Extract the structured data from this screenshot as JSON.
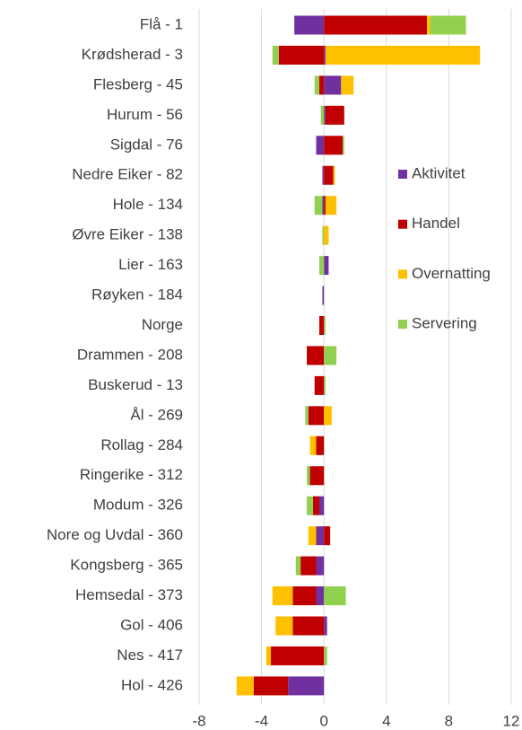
{
  "chart_data": {
    "type": "stacked-hbar",
    "categories": [
      "Flå - 1",
      "Krødsherad - 3",
      "Flesberg - 45",
      "Hurum - 56",
      "Sigdal - 76",
      "Nedre Eiker - 82",
      "Hole - 134",
      "Øvre Eiker - 138",
      "Lier - 163",
      "Røyken - 184",
      "Norge",
      "Drammen - 208",
      "Buskerud - 13",
      "Ål - 269",
      "Rollag - 284",
      "Ringerike - 312",
      "Modum - 326",
      "Nore og Uvdal - 360",
      "Kongsberg - 365",
      "Hemsedal - 373",
      "Gol - 406",
      "Nes - 417",
      "Hol - 426"
    ],
    "series": [
      {
        "name": "Aktivitet",
        "color": "#7030a0",
        "values": [
          -1.9,
          0.1,
          1.1,
          0.1,
          -0.5,
          -0.1,
          -0.1,
          0,
          0.3,
          -0.1,
          0,
          0,
          0,
          0,
          0,
          0,
          -0.3,
          -0.5,
          -0.5,
          -0.5,
          0.2,
          0,
          -2.3
        ]
      },
      {
        "name": "Handel",
        "color": "#c00000",
        "values": [
          6.6,
          -2.9,
          -0.3,
          1.2,
          1.2,
          0.6,
          0.1,
          0,
          0,
          0,
          -0.3,
          -1.1,
          -0.6,
          -1.0,
          -0.5,
          -0.9,
          -0.4,
          0.4,
          -1.0,
          -1.5,
          -2.0,
          -3.4,
          -2.2
        ]
      },
      {
        "name": "Overnatting",
        "color": "#ffc000",
        "values": [
          0.2,
          9.9,
          0.8,
          0,
          0,
          0.1,
          0.7,
          0.3,
          0,
          0,
          0,
          0,
          0,
          0.5,
          -0.4,
          0,
          0,
          -0.5,
          0,
          -1.3,
          -1.1,
          -0.3,
          -1.1
        ]
      },
      {
        "name": "Servering",
        "color": "#92d050",
        "values": [
          2.3,
          -0.4,
          -0.3,
          -0.2,
          0.1,
          0,
          -0.5,
          -0.1,
          -0.3,
          0,
          0.1,
          0.8,
          0.1,
          -0.2,
          0,
          -0.2,
          -0.4,
          0,
          -0.3,
          1.4,
          0,
          0.2,
          0
        ]
      }
    ],
    "xlim": [
      -8,
      12
    ],
    "xticks": [
      -8,
      -4,
      0,
      4,
      8,
      12
    ],
    "grid": true,
    "legend": "right"
  }
}
